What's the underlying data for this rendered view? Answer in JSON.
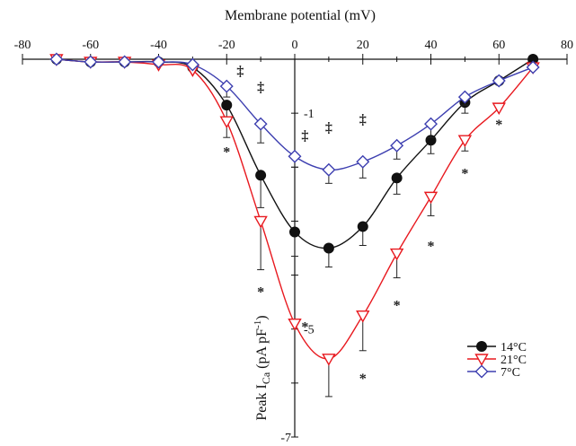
{
  "chart_data": {
    "type": "line",
    "xlabel": "Membrane potential (mV)",
    "ylabel": "Peak ICa (pA pF-1)",
    "ylabel_parts": {
      "main": "Peak I",
      "sub": "Ca",
      "rest": " (pA pF",
      "sup": "-1",
      "end": ")"
    },
    "xlim": [
      -80,
      80
    ],
    "ylim": [
      -7,
      0
    ],
    "x_ticks": [
      -80,
      -60,
      -40,
      -20,
      0,
      20,
      40,
      60,
      80
    ],
    "x_tick_labels": [
      "-80",
      "-60",
      "-40",
      "-20",
      "0",
      "20",
      "40",
      "60",
      "80"
    ],
    "y_tick_labels": [
      {
        "value": -1,
        "label": "-1"
      },
      {
        "value": -5,
        "label": "-5"
      },
      {
        "value": -7,
        "label": "-7"
      }
    ],
    "x": [
      -70,
      -60,
      -50,
      -40,
      -30,
      -20,
      -10,
      0,
      10,
      20,
      30,
      40,
      50,
      60,
      70
    ],
    "series": [
      {
        "name": "14°C",
        "color": "#111111",
        "marker": "circle-filled",
        "values": [
          0,
          -0.05,
          -0.05,
          -0.05,
          -0.15,
          -0.85,
          -2.15,
          -3.2,
          -3.5,
          -3.1,
          -2.2,
          -1.5,
          -0.8,
          -0.4,
          0
        ],
        "errors": [
          0,
          0,
          0,
          0,
          0,
          0.3,
          0.6,
          0.45,
          0.35,
          0.35,
          0.3,
          0.25,
          0.2,
          0,
          0
        ]
      },
      {
        "name": "21°C",
        "color": "#e8191f",
        "marker": "triangle-down-open",
        "values": [
          0,
          -0.05,
          -0.05,
          -0.1,
          -0.2,
          -1.15,
          -3.0,
          -4.9,
          -5.55,
          -4.75,
          -3.6,
          -2.55,
          -1.5,
          -0.9,
          -0.15
        ],
        "errors": [
          0,
          0,
          0,
          0,
          0,
          0.3,
          0.9,
          0,
          0.7,
          0.65,
          0.45,
          0.35,
          0.2,
          0,
          0
        ]
      },
      {
        "name": "7°C",
        "color": "#3d3fb0",
        "marker": "diamond-open",
        "values": [
          0,
          -0.05,
          -0.05,
          -0.05,
          -0.1,
          -0.5,
          -1.2,
          -1.8,
          -2.05,
          -1.9,
          -1.6,
          -1.2,
          -0.7,
          -0.4,
          -0.15
        ],
        "errors": [
          0,
          0,
          0,
          0,
          0,
          0.2,
          0.35,
          0.2,
          0.25,
          0.3,
          0.25,
          0.25,
          0.15,
          0,
          0
        ]
      }
    ],
    "annotations": [
      {
        "text": "‡",
        "x": -16,
        "y": -0.3
      },
      {
        "text": "‡",
        "x": -10,
        "y": -0.6
      },
      {
        "text": "‡",
        "x": 3,
        "y": -1.5
      },
      {
        "text": "‡",
        "x": 10,
        "y": -1.35
      },
      {
        "text": "‡",
        "x": 20,
        "y": -1.2
      },
      {
        "text": "*",
        "x": -20,
        "y": -1.8
      },
      {
        "text": "*",
        "x": -10,
        "y": -4.4
      },
      {
        "text": "*",
        "x": 3,
        "y": -5.05
      },
      {
        "text": "*",
        "x": 10,
        "y": -7.35
      },
      {
        "text": "*",
        "x": 20,
        "y": -6.0
      },
      {
        "text": "*",
        "x": 30,
        "y": -4.65
      },
      {
        "text": "*",
        "x": 40,
        "y": -3.55
      },
      {
        "text": "*",
        "x": 50,
        "y": -2.2
      },
      {
        "text": "*",
        "x": 60,
        "y": -1.3
      }
    ],
    "legend_position": "bottom-right",
    "grid": false
  }
}
